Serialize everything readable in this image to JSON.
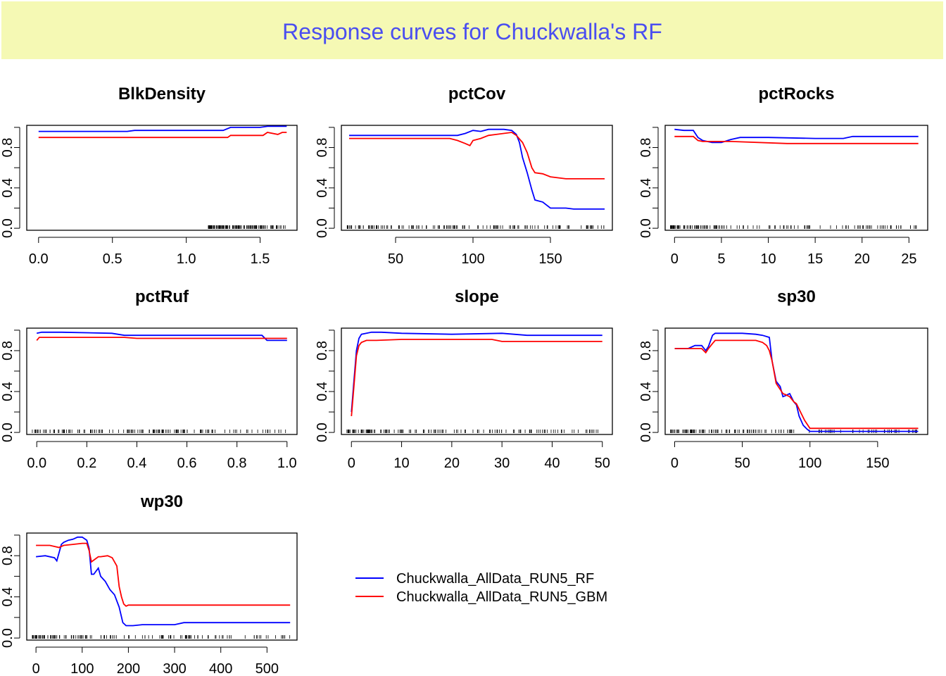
{
  "title": "Response curves for Chuckwalla's RF",
  "colors": {
    "background_band": "#f5f9b4",
    "title": "#4a4ef0",
    "rf": "#0000ff",
    "gbm": "#ff0000"
  },
  "legend": [
    {
      "label": "Chuckwalla_AllData_RUN5_RF",
      "color": "#0000ff"
    },
    {
      "label": "Chuckwalla_AllData_RUN5_GBM",
      "color": "#ff0000"
    }
  ],
  "chart_data": [
    {
      "type": "line",
      "title": "BlkDensity",
      "xlim": [
        -0.08,
        1.75
      ],
      "ylim": [
        -0.02,
        1.02
      ],
      "xticks": [
        0,
        0.5,
        1,
        1.5
      ],
      "xtick_labels": [
        "0.0",
        "0.5",
        "1.0",
        "1.5"
      ],
      "yticks": [
        0,
        0.4,
        0.8
      ],
      "ytick_labels": [
        "0.0",
        "0.4",
        "0.8"
      ],
      "series": [
        {
          "name": "Chuckwalla_AllData_RUN5_RF",
          "x": [
            0,
            0.6,
            0.65,
            1.25,
            1.3,
            1.5,
            1.55,
            1.65,
            1.68
          ],
          "y": [
            0.96,
            0.96,
            0.97,
            0.97,
            1.0,
            1.0,
            1.01,
            1.01,
            1.01
          ]
        },
        {
          "name": "Chuckwalla_AllData_RUN5_GBM",
          "x": [
            0,
            1.28,
            1.3,
            1.52,
            1.55,
            1.62,
            1.65,
            1.68
          ],
          "y": [
            0.9,
            0.9,
            0.92,
            0.92,
            0.95,
            0.93,
            0.95,
            0.95
          ]
        }
      ]
    },
    {
      "type": "line",
      "title": "pctCov",
      "xlim": [
        15,
        190
      ],
      "ylim": [
        -0.02,
        1.02
      ],
      "xticks": [
        50,
        100,
        150
      ],
      "xtick_labels": [
        "50",
        "100",
        "150"
      ],
      "yticks": [
        0,
        0.4,
        0.8
      ],
      "ytick_labels": [
        "0.0",
        "0.4",
        "0.8"
      ],
      "series": [
        {
          "name": "Chuckwalla_AllData_RUN5_RF",
          "x": [
            20,
            90,
            95,
            100,
            105,
            110,
            120,
            125,
            128,
            130,
            132,
            135,
            138,
            140,
            145,
            150,
            160,
            165,
            175,
            185
          ],
          "y": [
            0.92,
            0.92,
            0.94,
            0.97,
            0.96,
            0.98,
            0.98,
            0.97,
            0.93,
            0.85,
            0.7,
            0.55,
            0.38,
            0.28,
            0.26,
            0.2,
            0.2,
            0.19,
            0.19,
            0.19
          ]
        },
        {
          "name": "Chuckwalla_AllData_RUN5_GBM",
          "x": [
            20,
            85,
            90,
            95,
            98,
            100,
            105,
            110,
            115,
            125,
            128,
            132,
            135,
            138,
            140,
            145,
            150,
            160,
            170,
            185
          ],
          "y": [
            0.89,
            0.89,
            0.87,
            0.84,
            0.82,
            0.87,
            0.89,
            0.92,
            0.93,
            0.95,
            0.92,
            0.85,
            0.75,
            0.6,
            0.55,
            0.54,
            0.51,
            0.49,
            0.49,
            0.49
          ]
        }
      ]
    },
    {
      "type": "line",
      "title": "pctRocks",
      "xlim": [
        -1,
        27
      ],
      "ylim": [
        -0.02,
        1.02
      ],
      "xticks": [
        0,
        5,
        10,
        15,
        20,
        25
      ],
      "xtick_labels": [
        "0",
        "5",
        "10",
        "15",
        "20",
        "25"
      ],
      "yticks": [
        0,
        0.4,
        0.8
      ],
      "ytick_labels": [
        "0.0",
        "0.4",
        "0.8"
      ],
      "series": [
        {
          "name": "Chuckwalla_AllData_RUN5_RF",
          "x": [
            0,
            1,
            2,
            2.5,
            3,
            4,
            5,
            6,
            7,
            10,
            15,
            18,
            19,
            26
          ],
          "y": [
            0.98,
            0.97,
            0.97,
            0.9,
            0.87,
            0.85,
            0.85,
            0.88,
            0.9,
            0.9,
            0.89,
            0.89,
            0.91,
            0.91
          ]
        },
        {
          "name": "Chuckwalla_AllData_RUN5_GBM",
          "x": [
            0,
            2,
            2.5,
            3,
            4,
            6,
            12,
            17,
            26
          ],
          "y": [
            0.91,
            0.91,
            0.87,
            0.86,
            0.86,
            0.86,
            0.84,
            0.84,
            0.84
          ]
        }
      ]
    },
    {
      "type": "line",
      "title": "pctRuf",
      "xlim": [
        -0.04,
        1.04
      ],
      "ylim": [
        -0.02,
        1.02
      ],
      "xticks": [
        0,
        0.2,
        0.4,
        0.6,
        0.8,
        1.0
      ],
      "xtick_labels": [
        "0.0",
        "0.2",
        "0.4",
        "0.6",
        "0.8",
        "1.0"
      ],
      "yticks": [
        0,
        0.4,
        0.8
      ],
      "ytick_labels": [
        "0.0",
        "0.4",
        "0.8"
      ],
      "series": [
        {
          "name": "Chuckwalla_AllData_RUN5_RF",
          "x": [
            0,
            0.02,
            0.1,
            0.3,
            0.35,
            0.4,
            0.6,
            0.9,
            0.92,
            1.0
          ],
          "y": [
            0.97,
            0.98,
            0.98,
            0.97,
            0.95,
            0.95,
            0.95,
            0.95,
            0.9,
            0.9
          ]
        },
        {
          "name": "Chuckwalla_AllData_RUN5_GBM",
          "x": [
            0,
            0.01,
            0.03,
            0.2,
            0.35,
            0.4,
            0.6,
            0.8,
            0.92,
            1.0
          ],
          "y": [
            0.9,
            0.93,
            0.93,
            0.93,
            0.93,
            0.92,
            0.92,
            0.92,
            0.92,
            0.92
          ]
        }
      ]
    },
    {
      "type": "line",
      "title": "slope",
      "xlim": [
        -2,
        52
      ],
      "ylim": [
        -0.02,
        1.02
      ],
      "xticks": [
        0,
        10,
        20,
        30,
        40,
        50
      ],
      "xtick_labels": [
        "0",
        "10",
        "20",
        "30",
        "40",
        "50"
      ],
      "yticks": [
        0,
        0.4,
        0.8
      ],
      "ytick_labels": [
        "0.0",
        "0.4",
        "0.8"
      ],
      "series": [
        {
          "name": "Chuckwalla_AllData_RUN5_RF",
          "x": [
            0,
            0.5,
            1,
            1.5,
            2,
            3,
            4,
            6,
            10,
            20,
            30,
            35,
            40,
            50
          ],
          "y": [
            0.2,
            0.5,
            0.8,
            0.92,
            0.96,
            0.97,
            0.98,
            0.98,
            0.97,
            0.96,
            0.97,
            0.95,
            0.95,
            0.95
          ]
        },
        {
          "name": "Chuckwalla_AllData_RUN5_GBM",
          "x": [
            0,
            0.5,
            1,
            1.5,
            2,
            3,
            5,
            10,
            20,
            28,
            30,
            40,
            50
          ],
          "y": [
            0.16,
            0.45,
            0.75,
            0.85,
            0.88,
            0.9,
            0.9,
            0.91,
            0.91,
            0.91,
            0.89,
            0.89,
            0.89
          ]
        }
      ]
    },
    {
      "type": "line",
      "title": "sp30",
      "xlim": [
        -7,
        187
      ],
      "ylim": [
        -0.02,
        1.02
      ],
      "xticks": [
        0,
        50,
        100,
        150
      ],
      "xtick_labels": [
        "0",
        "50",
        "100",
        "150"
      ],
      "yticks": [
        0,
        0.4,
        0.8
      ],
      "ytick_labels": [
        "0.0",
        "0.4",
        "0.8"
      ],
      "series": [
        {
          "name": "Chuckwalla_AllData_RUN5_RF",
          "x": [
            0,
            10,
            15,
            20,
            23,
            25,
            28,
            30,
            35,
            50,
            60,
            65,
            70,
            72,
            75,
            78,
            80,
            82,
            85,
            88,
            90,
            92,
            95,
            98,
            100,
            180
          ],
          "y": [
            0.82,
            0.82,
            0.85,
            0.85,
            0.8,
            0.84,
            0.95,
            0.97,
            0.97,
            0.97,
            0.96,
            0.95,
            0.93,
            0.7,
            0.5,
            0.45,
            0.35,
            0.36,
            0.38,
            0.3,
            0.27,
            0.16,
            0.07,
            0.03,
            0.01,
            0.01
          ]
        },
        {
          "name": "Chuckwalla_AllData_RUN5_GBM",
          "x": [
            0,
            18,
            20,
            23,
            25,
            28,
            30,
            40,
            60,
            65,
            68,
            70,
            72,
            75,
            80,
            82,
            85,
            88,
            90,
            93,
            96,
            100,
            180
          ],
          "y": [
            0.82,
            0.82,
            0.82,
            0.78,
            0.82,
            0.87,
            0.9,
            0.9,
            0.9,
            0.88,
            0.85,
            0.8,
            0.7,
            0.48,
            0.38,
            0.37,
            0.35,
            0.3,
            0.28,
            0.2,
            0.12,
            0.04,
            0.04
          ]
        }
      ]
    },
    {
      "type": "line",
      "title": "wp30",
      "xlim": [
        -20,
        565
      ],
      "ylim": [
        -0.02,
        1.02
      ],
      "xticks": [
        0,
        100,
        200,
        300,
        400,
        500
      ],
      "xtick_labels": [
        "0",
        "100",
        "200",
        "300",
        "400",
        "500"
      ],
      "yticks": [
        0,
        0.4,
        0.8
      ],
      "ytick_labels": [
        "0.0",
        "0.4",
        "0.8"
      ],
      "series": [
        {
          "name": "Chuckwalla_AllData_RUN5_RF",
          "x": [
            0,
            20,
            40,
            45,
            55,
            60,
            70,
            80,
            90,
            100,
            110,
            115,
            120,
            125,
            135,
            140,
            150,
            160,
            170,
            180,
            188,
            195,
            210,
            230,
            250,
            300,
            320,
            550
          ],
          "y": [
            0.79,
            0.8,
            0.78,
            0.75,
            0.91,
            0.93,
            0.95,
            0.96,
            0.98,
            0.98,
            0.95,
            0.87,
            0.62,
            0.62,
            0.68,
            0.6,
            0.55,
            0.47,
            0.42,
            0.3,
            0.15,
            0.12,
            0.12,
            0.13,
            0.13,
            0.13,
            0.15,
            0.15
          ]
        },
        {
          "name": "Chuckwalla_AllData_RUN5_GBM",
          "x": [
            0,
            30,
            50,
            60,
            80,
            100,
            110,
            115,
            120,
            135,
            140,
            155,
            165,
            170,
            175,
            180,
            185,
            190,
            195,
            200,
            550
          ],
          "y": [
            0.9,
            0.9,
            0.88,
            0.9,
            0.91,
            0.92,
            0.92,
            0.85,
            0.74,
            0.79,
            0.79,
            0.8,
            0.78,
            0.74,
            0.7,
            0.5,
            0.4,
            0.33,
            0.31,
            0.32,
            0.32
          ]
        }
      ]
    }
  ]
}
